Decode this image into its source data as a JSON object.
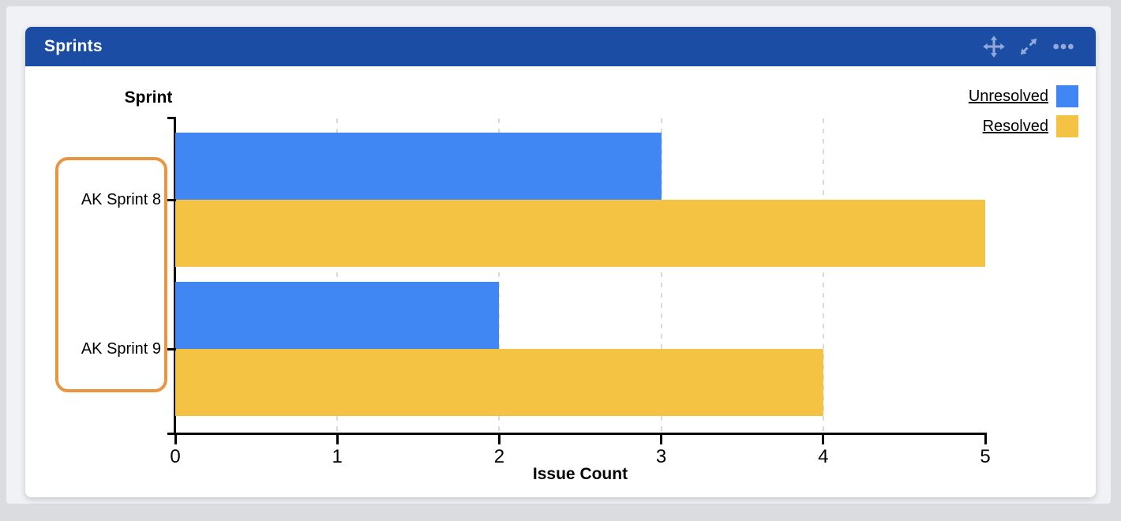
{
  "window": {
    "background": "#dbdce0",
    "panel_background": "#f1f2f5",
    "card_background": "#ffffff"
  },
  "gadget": {
    "title": "Sprints",
    "header_color": "#1c4da5",
    "icon_color": "#93a9d6",
    "icons": [
      "move-icon",
      "expand-icon",
      "more-icon"
    ]
  },
  "chart_data": {
    "type": "bar",
    "orientation": "horizontal",
    "categories": [
      "AK Sprint 8",
      "AK Sprint 9"
    ],
    "series": [
      {
        "name": "Unresolved",
        "color": "#4187f4",
        "values": [
          3,
          2
        ]
      },
      {
        "name": "Resolved",
        "color": "#f5c343",
        "values": [
          5,
          4
        ]
      }
    ],
    "xlabel": "Issue Count",
    "ylabel": "Sprint",
    "xlim": [
      0,
      5
    ],
    "xticks": [
      0,
      1,
      2,
      3,
      4,
      5
    ],
    "grid": "vertical-dashed-interior-ticks",
    "gridline_color": "#dadada",
    "axis_color": "#000000",
    "legend_position": "top-right",
    "legend_style": "underlined-links"
  },
  "annotations": {
    "category_highlight": {
      "applies_to": [
        "AK Sprint 8",
        "AK Sprint 9"
      ],
      "border_color": "#ea9641",
      "shape": "rounded-rect"
    }
  }
}
